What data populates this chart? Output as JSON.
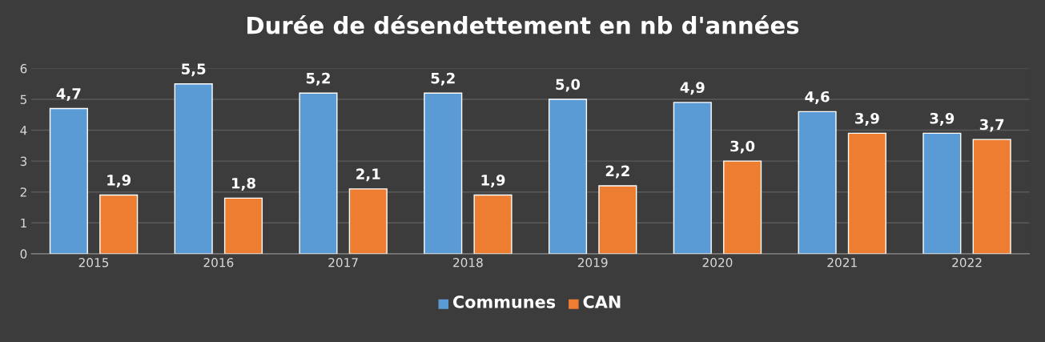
{
  "chart_data": {
    "type": "bar",
    "title": "Durée de désendettement en nb d'années",
    "categories": [
      "2015",
      "2016",
      "2017",
      "2018",
      "2019",
      "2020",
      "2021",
      "2022"
    ],
    "series": [
      {
        "name": "Communes",
        "color": "#5b9bd5",
        "values": [
          4.7,
          5.5,
          5.2,
          5.2,
          5.0,
          4.9,
          4.6,
          3.9
        ],
        "value_labels": [
          "4,7",
          "5,5",
          "5,2",
          "5,2",
          "5,0",
          "4,9",
          "4,6",
          "3,9"
        ]
      },
      {
        "name": "CAN",
        "color": "#ed7d31",
        "values": [
          1.9,
          1.8,
          2.1,
          1.9,
          2.2,
          3.0,
          3.9,
          3.7
        ],
        "value_labels": [
          "1,9",
          "1,8",
          "2,1",
          "1,9",
          "2,2",
          "3,0",
          "3,9",
          "3,7"
        ]
      }
    ],
    "ylim": [
      0,
      6
    ],
    "yticks": [
      0,
      1,
      2,
      3,
      4,
      5,
      6
    ],
    "grid": "y",
    "legend": "bottom"
  }
}
